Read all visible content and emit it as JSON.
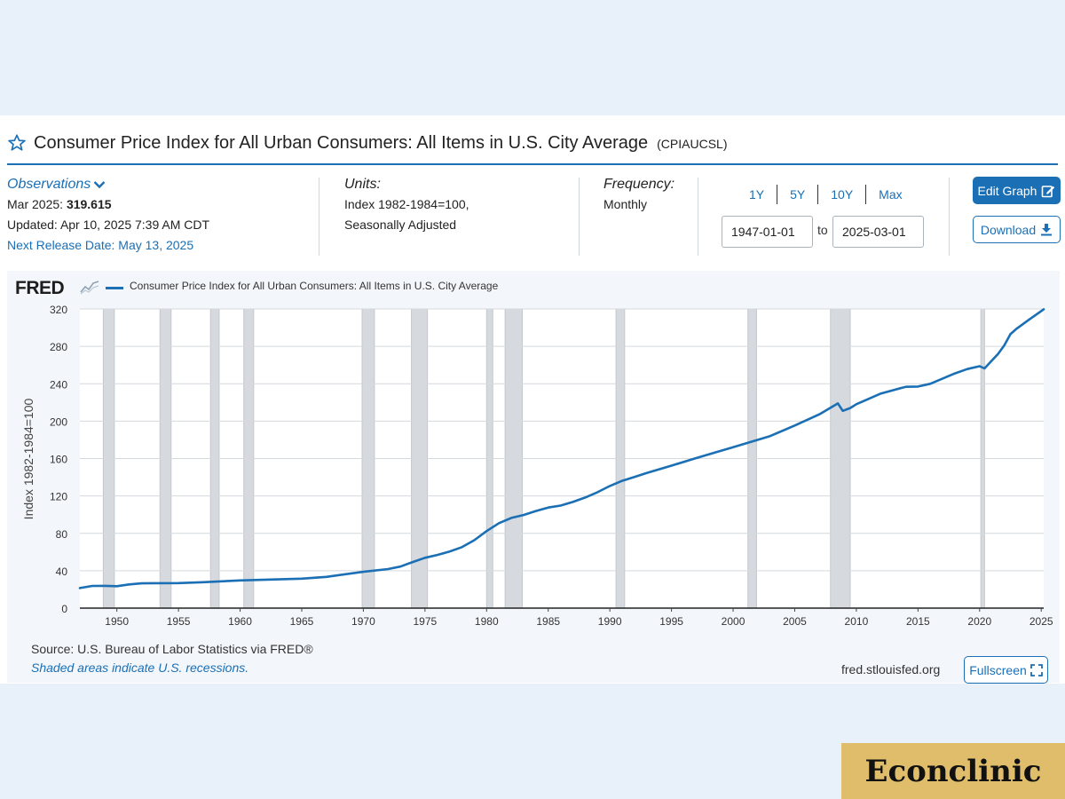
{
  "header": {
    "title": "Consumer Price Index for All Urban Consumers: All Items in U.S. City Average",
    "code": "(CPIAUCSL)"
  },
  "observations": {
    "label": "Observations",
    "latest_label": "Mar 2025:",
    "latest_value": "319.615",
    "updated": "Updated: Apr 10, 2025 7:39 AM CDT",
    "next_release": "Next Release Date: May 13, 2025"
  },
  "units": {
    "label": "Units:",
    "line1": "Index 1982-1984=100,",
    "line2": "Seasonally Adjusted"
  },
  "frequency": {
    "label": "Frequency:",
    "value": "Monthly"
  },
  "range": {
    "buttons": [
      "1Y",
      "5Y",
      "10Y",
      "Max"
    ],
    "start": "1947-01-01",
    "to_label": "to",
    "end": "2025-03-01"
  },
  "actions": {
    "edit_label": "Edit Graph",
    "download_label": "Download",
    "fullscreen_label": "Fullscreen"
  },
  "graph": {
    "logo": "FRED",
    "source": "Source: U.S. Bureau of Labor Statistics via FRED®",
    "shaded_note": "Shaded areas indicate U.S. recessions.",
    "site": "fred.stlouisfed.org"
  },
  "brand": {
    "name": "Econclinic"
  },
  "colors": {
    "accent": "#1a6fb5",
    "series": "#1a6fb5",
    "recession": "#d6dade",
    "brand_bg": "#e0bd6a"
  },
  "chart_data": {
    "type": "line",
    "title": "",
    "legend": "Consumer Price Index for All Urban Consumers: All Items in U.S. City Average",
    "xlabel": "",
    "ylabel": "Index 1982-1984=100",
    "xlim": [
      1947,
      2025.2
    ],
    "ylim": [
      0,
      320
    ],
    "yticks": [
      0,
      40,
      80,
      120,
      160,
      200,
      240,
      280,
      320
    ],
    "xticks": [
      1950,
      1955,
      1960,
      1965,
      1970,
      1975,
      1980,
      1985,
      1990,
      1995,
      2000,
      2005,
      2010,
      2015,
      2020,
      2025
    ],
    "grid": true,
    "recessions": [
      [
        1948.9,
        1949.8
      ],
      [
        1953.5,
        1954.4
      ],
      [
        1957.6,
        1958.3
      ],
      [
        1960.3,
        1961.1
      ],
      [
        1969.9,
        1970.9
      ],
      [
        1973.9,
        1975.2
      ],
      [
        1980.0,
        1980.5
      ],
      [
        1981.5,
        1982.9
      ],
      [
        1990.5,
        1991.2
      ],
      [
        2001.2,
        2001.9
      ],
      [
        2007.9,
        2009.5
      ],
      [
        2020.1,
        2020.4
      ]
    ],
    "series": [
      {
        "name": "CPIAUCSL",
        "x": [
          1947.0,
          1948.0,
          1949.0,
          1950.0,
          1951.0,
          1952.0,
          1953.0,
          1955.0,
          1957.0,
          1960.0,
          1965.0,
          1967.0,
          1970.0,
          1972.0,
          1973.0,
          1974.0,
          1975.0,
          1976.0,
          1977.0,
          1978.0,
          1979.0,
          1980.0,
          1981.0,
          1982.0,
          1983.0,
          1984.0,
          1985.0,
          1986.0,
          1987.0,
          1988.0,
          1989.0,
          1990.0,
          1991.0,
          1992.0,
          1993.0,
          1995.0,
          1997.0,
          2000.0,
          2003.0,
          2005.0,
          2007.0,
          2008.5,
          2008.9,
          2009.5,
          2010.0,
          2012.0,
          2014.0,
          2015.0,
          2016.0,
          2018.0,
          2019.0,
          2020.0,
          2020.4,
          2021.0,
          2021.5,
          2022.0,
          2022.5,
          2023.0,
          2024.0,
          2025.2
        ],
        "values": [
          21.5,
          23.7,
          23.8,
          23.5,
          25.4,
          26.5,
          26.7,
          26.8,
          27.7,
          29.6,
          31.5,
          33.4,
          38.8,
          41.8,
          44.4,
          49.3,
          53.8,
          56.9,
          60.6,
          65.2,
          72.6,
          82.4,
          90.9,
          96.5,
          99.6,
          103.9,
          107.6,
          109.7,
          113.6,
          118.3,
          124.0,
          130.7,
          136.2,
          140.3,
          144.5,
          152.4,
          160.5,
          172.2,
          184.0,
          195.3,
          207.3,
          219.0,
          211.0,
          214.0,
          218.1,
          229.6,
          236.7,
          237.0,
          240.0,
          251.1,
          255.7,
          258.8,
          256.4,
          264.9,
          272.0,
          281.1,
          293.0,
          298.8,
          308.4,
          319.6
        ]
      }
    ]
  }
}
